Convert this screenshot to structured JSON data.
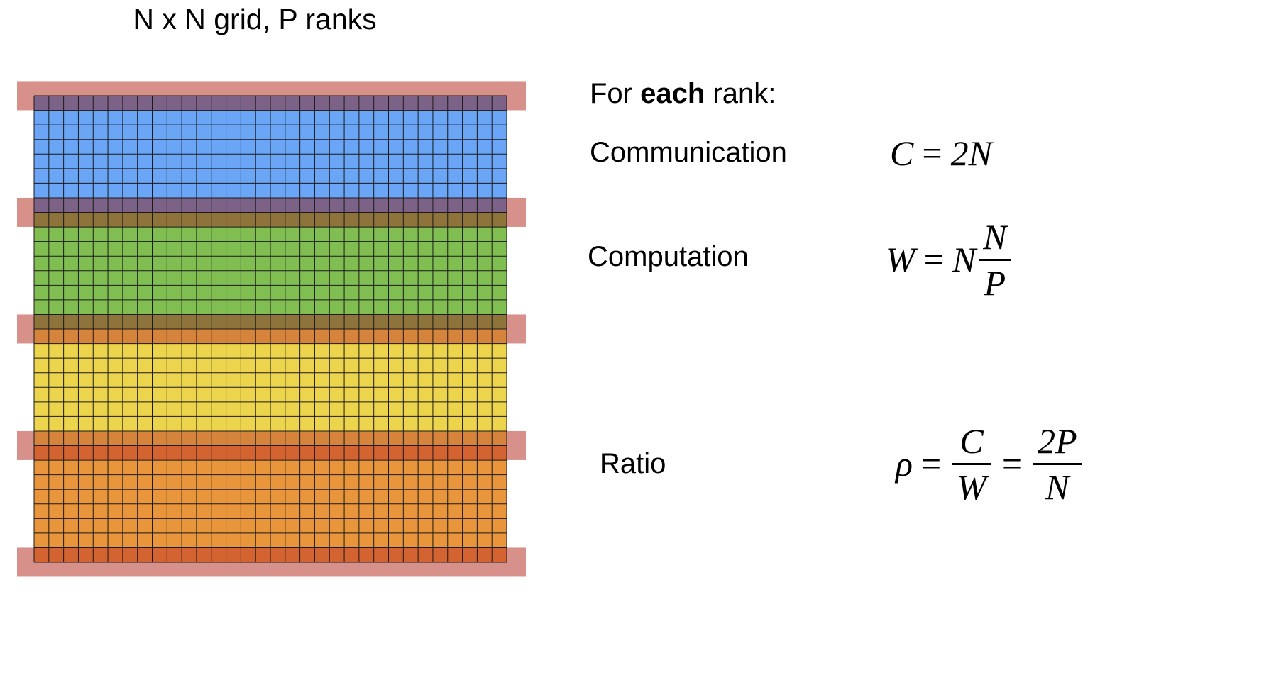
{
  "title": "N x N grid, P ranks",
  "header": {
    "prefix": "For ",
    "bold": "each",
    "suffix": " rank:"
  },
  "communication": {
    "label": "Communication",
    "lhs": "C",
    "eq": "=",
    "rhs": "2N"
  },
  "computation": {
    "label": "Computation",
    "lhs": "W",
    "eq": "=",
    "factor": "N",
    "num": "N",
    "den": "P"
  },
  "ratio": {
    "label": "Ratio",
    "lhs": "ρ",
    "eq1": "=",
    "num1": "C",
    "den1": "W",
    "eq2": "=",
    "num2": "2P",
    "den2": "N"
  },
  "grid": {
    "cols": 32,
    "rows": 32,
    "ghost_color": "#d8918a",
    "ranks": [
      {
        "color": "#6aa5f6",
        "ghost_overlap": "#7d6287"
      },
      {
        "color": "#80be52",
        "ghost_overlap": "#8e743b"
      },
      {
        "color": "#ecd44d",
        "ghost_overlap": "#d6843c"
      },
      {
        "color": "#e8953c",
        "ghost_overlap": "#d36330"
      }
    ]
  }
}
